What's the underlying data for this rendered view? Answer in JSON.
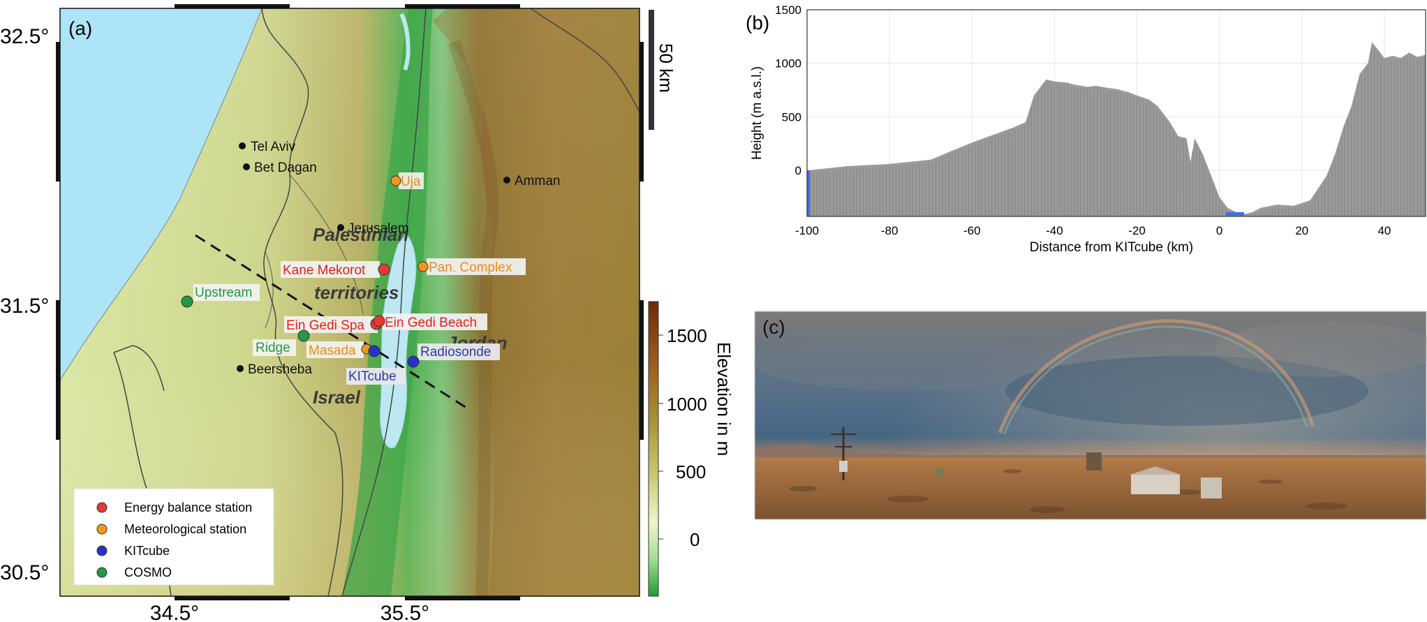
{
  "panel_a": {
    "label": "(a)",
    "lat_ticks": [
      "32.5°",
      "31.5°",
      "30.5°"
    ],
    "lon_ticks": [
      "34.5°",
      "35.5°"
    ],
    "scale_label": "50 km",
    "cities": [
      {
        "name": "Tel Aviv"
      },
      {
        "name": "Bet Dagan"
      },
      {
        "name": "Jerusalem"
      },
      {
        "name": "Amman"
      },
      {
        "name": "Beersheba"
      }
    ],
    "region_labels": [
      "Palestinian",
      "territories",
      "Jordan",
      "Israel"
    ],
    "stations": [
      {
        "name": "Uja",
        "type": "meteorological"
      },
      {
        "name": "Kane Mekorot",
        "type": "energy"
      },
      {
        "name": "Pan. Complex",
        "type": "meteorological"
      },
      {
        "name": "Upstream",
        "type": "cosmo"
      },
      {
        "name": "Ein Gedi Spa",
        "type": "energy"
      },
      {
        "name": "Ein Gedi Beach",
        "type": "energy"
      },
      {
        "name": "Ridge",
        "type": "cosmo"
      },
      {
        "name": "Masada",
        "type": "meteorological"
      },
      {
        "name": "Radiosonde",
        "type": "kitcube"
      },
      {
        "name": "KITcube",
        "type": "kitcube"
      }
    ],
    "legend": [
      {
        "label": "Energy balance station",
        "color": "#e53935"
      },
      {
        "label": "Meteorological station",
        "color": "#f5961e"
      },
      {
        "label": "KITcube",
        "color": "#2233cc"
      },
      {
        "label": "COSMO",
        "color": "#229944"
      }
    ],
    "colorbar": {
      "title": "Elevation in m",
      "ticks": [
        "1500",
        "1000",
        "500",
        "0"
      ]
    }
  },
  "panel_b": {
    "label": "(b)",
    "chart_data": {
      "type": "area",
      "xlabel": "Distance from KITcube (km)",
      "ylabel": "Height (m a.s.l.)",
      "xlim": [
        -100,
        50
      ],
      "ylim": [
        -430,
        1500
      ],
      "xticks": [
        -100,
        -80,
        -60,
        -40,
        -20,
        0,
        20,
        40
      ],
      "yticks": [
        0,
        500,
        1000,
        1500
      ],
      "x": [
        -100,
        -95,
        -90,
        -85,
        -80,
        -75,
        -70,
        -65,
        -60,
        -55,
        -50,
        -47,
        -45,
        -42,
        -40,
        -37,
        -35,
        -32,
        -30,
        -27,
        -25,
        -22,
        -20,
        -17,
        -15,
        -12,
        -10,
        -8,
        -7,
        -6,
        -4,
        -2,
        0,
        2,
        4,
        6,
        8,
        10,
        14,
        18,
        22,
        26,
        28,
        30,
        32,
        34,
        36,
        37,
        38,
        40,
        42,
        44,
        46,
        48,
        50
      ],
      "y": [
        0,
        20,
        40,
        50,
        60,
        80,
        100,
        180,
        260,
        330,
        400,
        450,
        700,
        850,
        830,
        820,
        800,
        780,
        790,
        770,
        760,
        730,
        700,
        660,
        600,
        450,
        320,
        300,
        80,
        300,
        150,
        -50,
        -250,
        -350,
        -390,
        -410,
        -390,
        -350,
        -320,
        -330,
        -280,
        -50,
        150,
        400,
        600,
        900,
        1000,
        1200,
        1150,
        1050,
        1070,
        1050,
        1100,
        1060,
        1080
      ],
      "water_segments": [
        [
          -100,
          -99
        ],
        [
          1.5,
          6
        ]
      ]
    }
  },
  "panel_c": {
    "label": "(c)"
  }
}
